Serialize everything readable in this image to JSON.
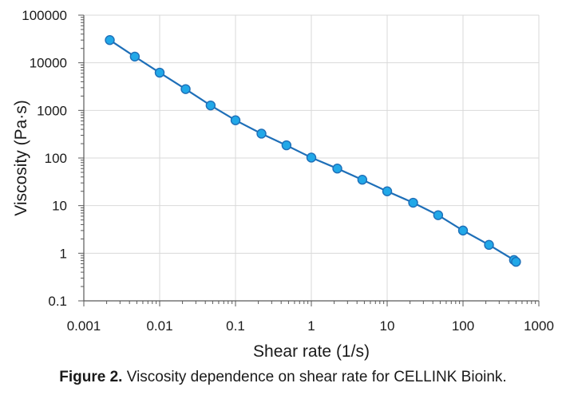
{
  "caption": {
    "label": "Figure 2.",
    "text": "Viscosity dependence on shear rate for CELLINK Bioink."
  },
  "chart_data": {
    "type": "line",
    "xlabel": "Shear rate (1/s)",
    "ylabel": "Viscosity (Pa·s)",
    "xscale": "log",
    "yscale": "log",
    "xlim": [
      0.001,
      1000
    ],
    "ylim": [
      0.1,
      100000
    ],
    "xticks": [
      "0.001",
      "0.01",
      "0.1",
      "1",
      "10",
      "100",
      "1000"
    ],
    "yticks": [
      "0.1",
      "1",
      "10",
      "100",
      "1000",
      "10000",
      "100000"
    ],
    "grid": true,
    "legend": "none",
    "series": [
      {
        "color": "#1e6fb8",
        "marker_color": "#21a8e8",
        "x": [
          0.0022,
          0.0047,
          0.01,
          0.022,
          0.047,
          0.1,
          0.22,
          0.47,
          1,
          2.2,
          4.7,
          10,
          22,
          47,
          100,
          220,
          470,
          500
        ],
        "y": [
          30000,
          13500,
          6200,
          2800,
          1270,
          620,
          325,
          185,
          102,
          60,
          35,
          20,
          11.5,
          6.3,
          3.0,
          1.5,
          0.72,
          0.66
        ]
      }
    ]
  }
}
